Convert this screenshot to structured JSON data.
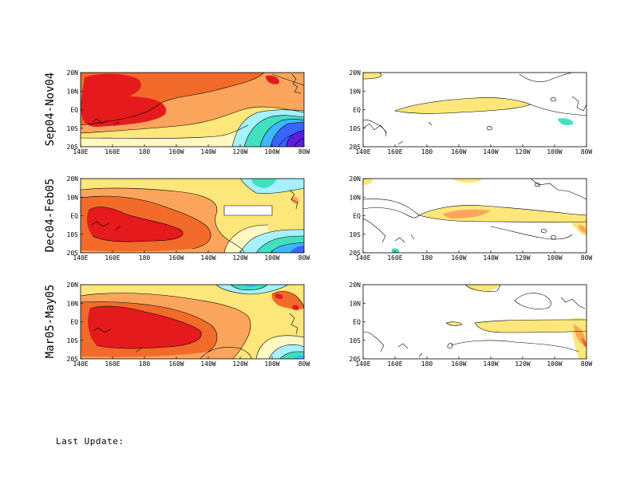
{
  "chart_data": {
    "type": "heatmap",
    "layout": "3 rows x 2 columns of filled-contour maps over the tropical Pacific",
    "x_tick_labels": [
      "140E",
      "160E",
      "180",
      "160W",
      "140W",
      "120W",
      "100W",
      "80W"
    ],
    "y_tick_labels": [
      "20S",
      "10S",
      "EQ",
      "10N",
      "20N"
    ],
    "x_range": [
      "140E",
      "80W"
    ],
    "y_range": [
      "20S",
      "20N"
    ],
    "rows": [
      {
        "label": "Sep04-Nov04"
      },
      {
        "label": "Dec04-Feb05"
      },
      {
        "label": "Mar05-May05"
      }
    ],
    "colors": {
      "red": "#e41a1c",
      "dark_orange": "#f26b2a",
      "orange": "#fba55c",
      "yellow": "#fde67a",
      "pale_yellow": "#fff8c2",
      "cyan": "#a6f0ff",
      "teal": "#40e0c0",
      "light_blue": "#3cb8ff",
      "blue": "#3a63ff",
      "violet": "#5a1ee0"
    }
  },
  "footer": {
    "last_update_label": "Last Update:"
  }
}
